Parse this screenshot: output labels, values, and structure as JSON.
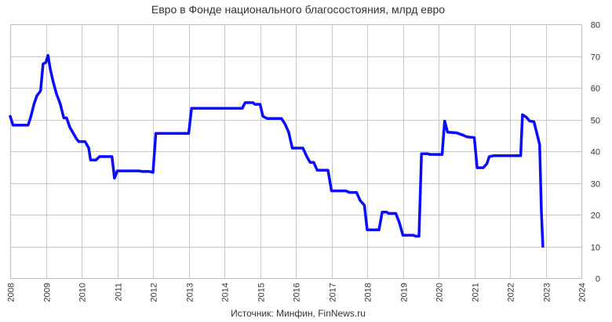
{
  "chart_data": {
    "type": "line",
    "title": "Евро в Фонде национального благосостояния, млрд евро",
    "source": "Источник: Минфин, FinNews.ru",
    "xlim": [
      2008,
      2024
    ],
    "ylim": [
      0,
      80
    ],
    "x_ticks": [
      "2008",
      "2009",
      "2010",
      "2011",
      "2012",
      "2013",
      "2014",
      "2015",
      "2016",
      "2017",
      "2018",
      "2019",
      "2020",
      "2021",
      "2022",
      "2023",
      "2024"
    ],
    "y_ticks": [
      "0",
      "10",
      "20",
      "30",
      "40",
      "50",
      "60",
      "70",
      "80"
    ],
    "y_axis_position": "right",
    "grid": true,
    "series": [
      {
        "color": "#0a0aff",
        "points": [
          [
            2008.0,
            51
          ],
          [
            2008.08,
            48.2
          ],
          [
            2008.5,
            48.2
          ],
          [
            2008.58,
            51
          ],
          [
            2008.67,
            55
          ],
          [
            2008.75,
            57.5
          ],
          [
            2008.85,
            59
          ],
          [
            2008.92,
            67.5
          ],
          [
            2009.0,
            68
          ],
          [
            2009.06,
            70.2
          ],
          [
            2009.12,
            66
          ],
          [
            2009.2,
            62
          ],
          [
            2009.3,
            58
          ],
          [
            2009.4,
            55
          ],
          [
            2009.5,
            50.5
          ],
          [
            2009.58,
            50.5
          ],
          [
            2009.67,
            47.5
          ],
          [
            2009.75,
            46
          ],
          [
            2009.85,
            44
          ],
          [
            2009.92,
            43
          ],
          [
            2010.0,
            43
          ],
          [
            2010.1,
            43
          ],
          [
            2010.2,
            41
          ],
          [
            2010.25,
            37.2
          ],
          [
            2010.4,
            37.2
          ],
          [
            2010.5,
            38.3
          ],
          [
            2010.85,
            38.3
          ],
          [
            2010.92,
            31.5
          ],
          [
            2011.0,
            33.8
          ],
          [
            2011.6,
            33.8
          ],
          [
            2011.7,
            33.6
          ],
          [
            2011.9,
            33.6
          ],
          [
            2012.0,
            33.3
          ],
          [
            2012.08,
            45.6
          ],
          [
            2012.9,
            45.6
          ],
          [
            2013.0,
            45.6
          ],
          [
            2013.08,
            53.5
          ],
          [
            2014.0,
            53.5
          ],
          [
            2014.5,
            53.5
          ],
          [
            2014.58,
            55.3
          ],
          [
            2014.8,
            55.3
          ],
          [
            2014.85,
            54.8
          ],
          [
            2015.0,
            54.8
          ],
          [
            2015.08,
            51
          ],
          [
            2015.2,
            50.3
          ],
          [
            2015.6,
            50.3
          ],
          [
            2015.7,
            48.5
          ],
          [
            2015.8,
            46
          ],
          [
            2015.9,
            41
          ],
          [
            2016.2,
            41
          ],
          [
            2016.3,
            38.5
          ],
          [
            2016.4,
            36.5
          ],
          [
            2016.5,
            36.5
          ],
          [
            2016.6,
            34
          ],
          [
            2016.9,
            34
          ],
          [
            2017.0,
            27.5
          ],
          [
            2017.4,
            27.5
          ],
          [
            2017.5,
            27
          ],
          [
            2017.7,
            27
          ],
          [
            2017.8,
            24.5
          ],
          [
            2017.92,
            23
          ],
          [
            2018.0,
            15.2
          ],
          [
            2018.33,
            15.2
          ],
          [
            2018.42,
            20.8
          ],
          [
            2018.55,
            20.8
          ],
          [
            2018.6,
            20.4
          ],
          [
            2018.8,
            20.4
          ],
          [
            2018.9,
            17.5
          ],
          [
            2019.0,
            13.5
          ],
          [
            2019.3,
            13.5
          ],
          [
            2019.35,
            13.2
          ],
          [
            2019.45,
            13.2
          ],
          [
            2019.52,
            39.2
          ],
          [
            2019.7,
            39.2
          ],
          [
            2019.75,
            39
          ],
          [
            2020.1,
            39
          ],
          [
            2020.17,
            49.5
          ],
          [
            2020.25,
            46
          ],
          [
            2020.5,
            45.8
          ],
          [
            2020.7,
            45
          ],
          [
            2020.8,
            44.5
          ],
          [
            2021.0,
            44.3
          ],
          [
            2021.08,
            34.8
          ],
          [
            2021.25,
            34.8
          ],
          [
            2021.35,
            36
          ],
          [
            2021.42,
            38.3
          ],
          [
            2021.55,
            38.6
          ],
          [
            2022.2,
            38.6
          ],
          [
            2022.3,
            38.6
          ],
          [
            2022.35,
            51.5
          ],
          [
            2022.45,
            50.8
          ],
          [
            2022.55,
            49.5
          ],
          [
            2022.67,
            49.3
          ],
          [
            2022.8,
            43.5
          ],
          [
            2022.83,
            42
          ],
          [
            2022.88,
            21
          ],
          [
            2022.92,
            10
          ]
        ]
      }
    ]
  }
}
